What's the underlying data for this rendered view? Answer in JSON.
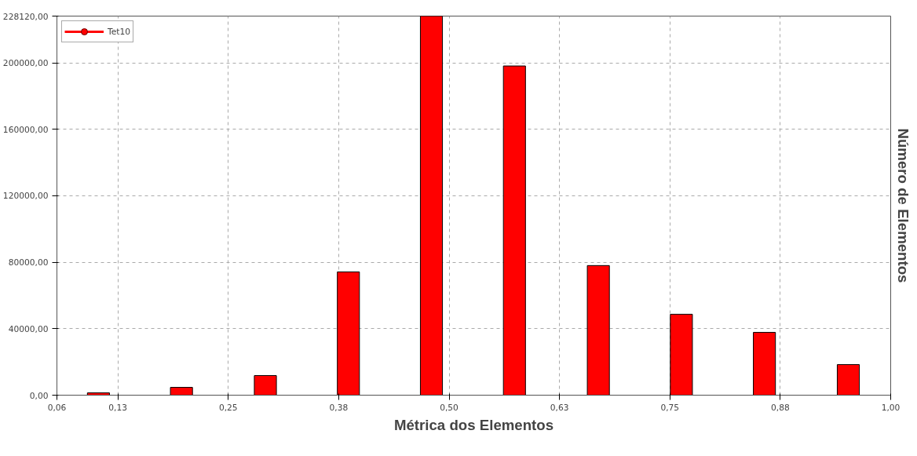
{
  "chart_data": {
    "type": "bar",
    "xlabel": "Métrica dos Elementos",
    "ylabel": "Número de Elementos",
    "x": [
      0.103,
      0.197,
      0.292,
      0.386,
      0.48,
      0.574,
      0.669,
      0.763,
      0.857,
      0.952
    ],
    "series": [
      {
        "name": "Tet10",
        "color": "#ff0000",
        "values": [
          1400,
          4700,
          11800,
          74200,
          228120,
          198100,
          78000,
          48700,
          37800,
          18400
        ]
      }
    ],
    "xlim": [
      0.056,
      1.0
    ],
    "xticks": [
      {
        "value": 0.056,
        "label": "0,06"
      },
      {
        "value": 0.125,
        "label": "0,13"
      },
      {
        "value": 0.25,
        "label": "0,25"
      },
      {
        "value": 0.375,
        "label": "0,38"
      },
      {
        "value": 0.5,
        "label": "0,50"
      },
      {
        "value": 0.625,
        "label": "0,63"
      },
      {
        "value": 0.75,
        "label": "0,75"
      },
      {
        "value": 0.875,
        "label": "0,88"
      },
      {
        "value": 1.0,
        "label": "1,00"
      }
    ],
    "ylim": [
      0,
      228120
    ],
    "yticks": [
      {
        "value": 0,
        "label": "0,00"
      },
      {
        "value": 40000,
        "label": "40000,00"
      },
      {
        "value": 80000,
        "label": "80000,00"
      },
      {
        "value": 120000,
        "label": "120000,00"
      },
      {
        "value": 160000,
        "label": "160000,00"
      },
      {
        "value": 200000,
        "label": "200000,00"
      },
      {
        "value": 228120,
        "label": "228120,00"
      }
    ],
    "grid": true,
    "legend": "top left",
    "marker": "circle"
  }
}
